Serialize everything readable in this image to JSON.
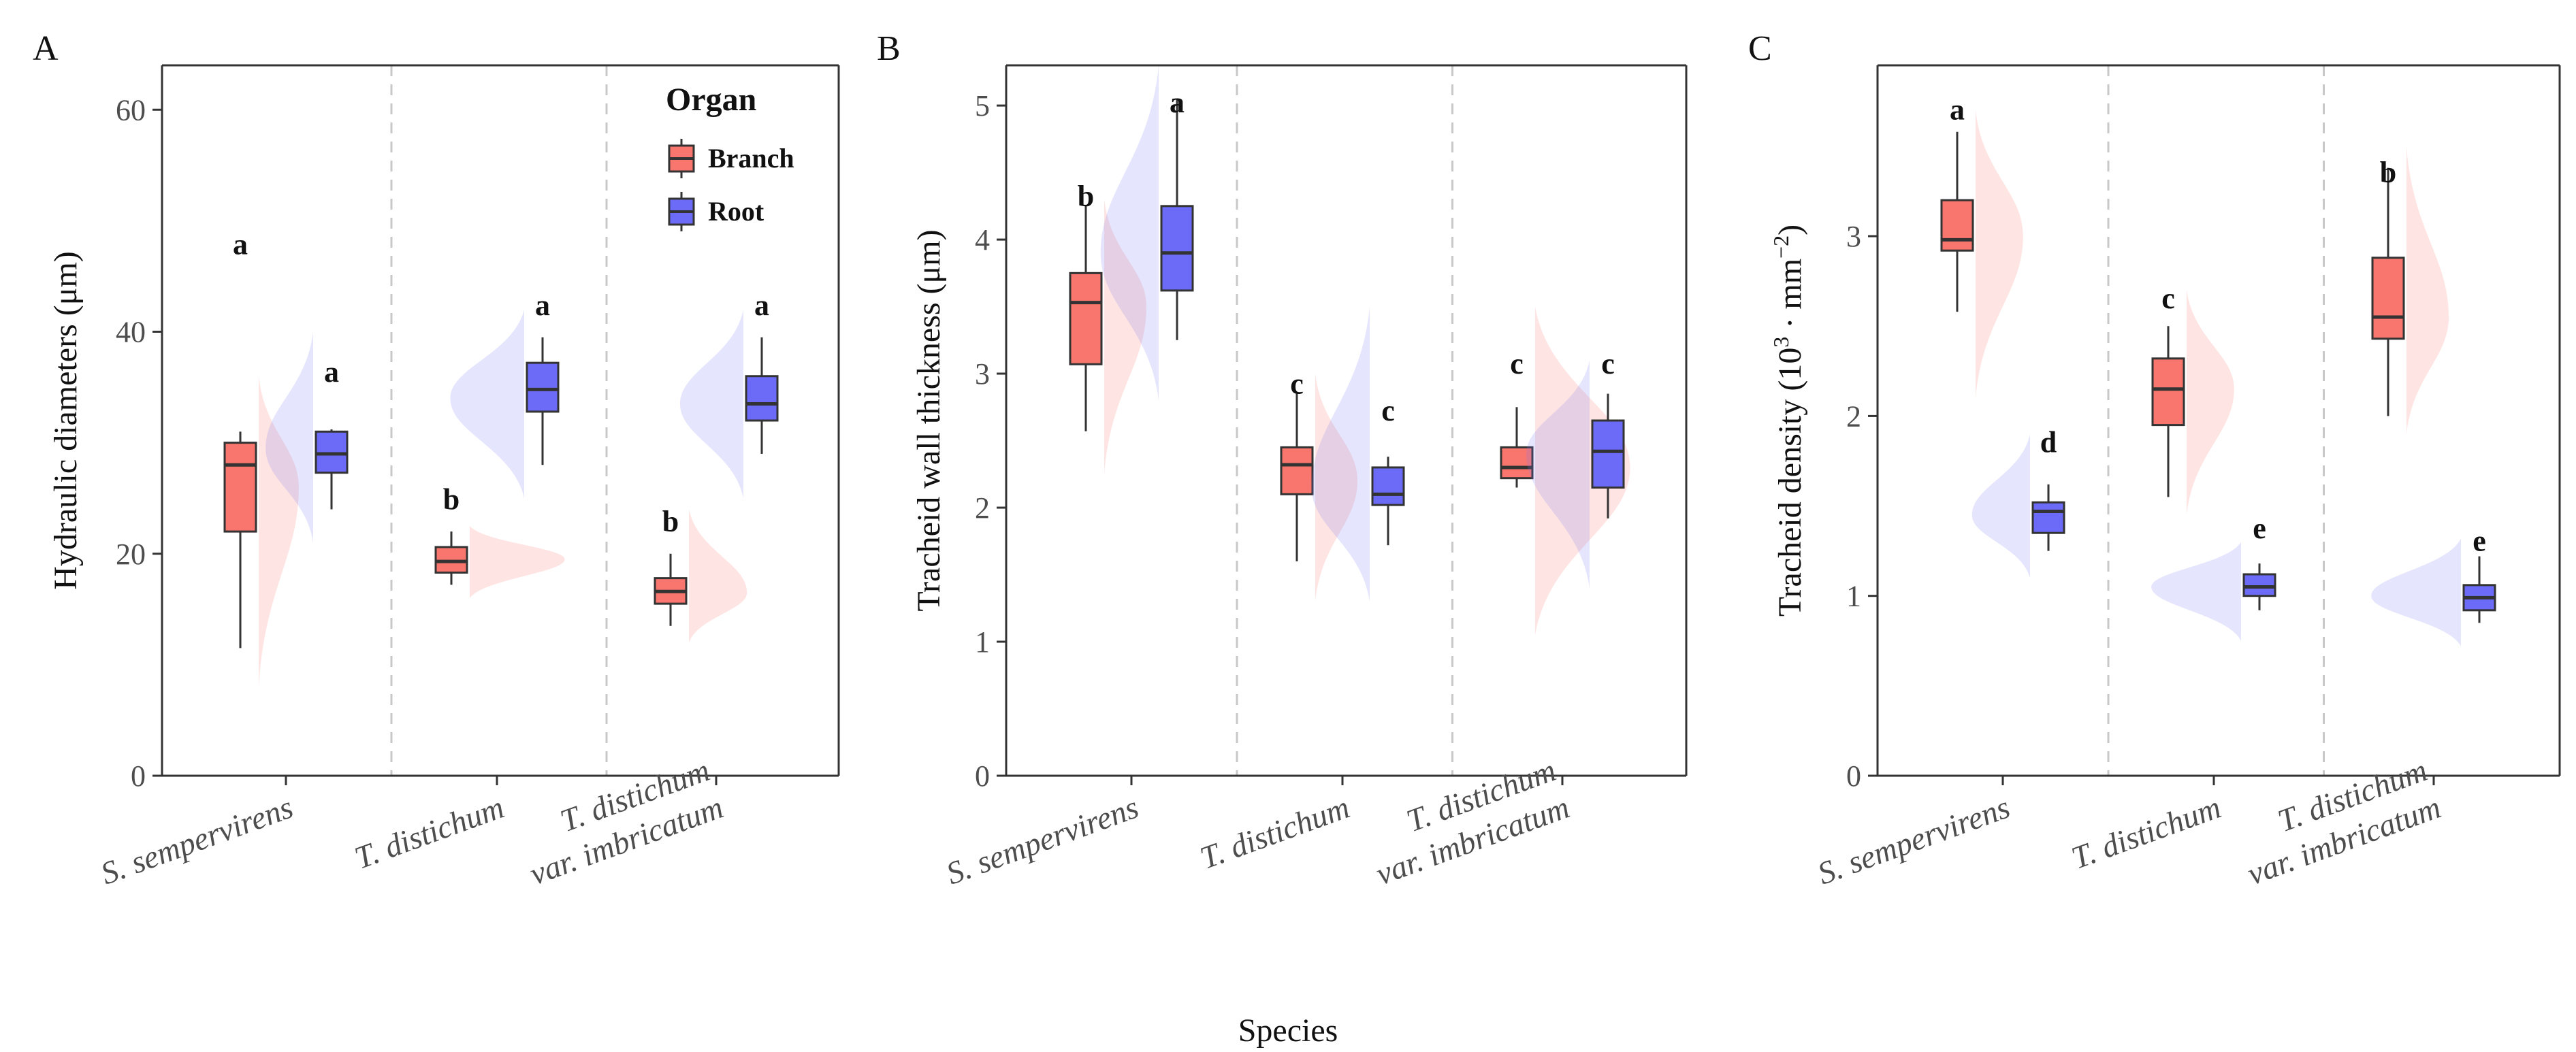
{
  "figure": {
    "xlabel": "Species"
  },
  "legend": {
    "title": "Organ",
    "items": [
      {
        "label": "Branch",
        "color": "#F8766D"
      },
      {
        "label": "Root",
        "color": "#6B6BF7"
      }
    ]
  },
  "colors": {
    "branch_violin": "#F8766D",
    "root_violin": "#7B7BF7",
    "separator": "#C8C8C8",
    "axis": "#333333"
  },
  "chart_data": [
    {
      "type": "box",
      "panel": "A",
      "ylabel": "Hydraulic diameters (μm)",
      "ylim": [
        0,
        64
      ],
      "yticks": [
        0,
        20,
        40,
        60
      ],
      "categories": [
        "S. sempervirens",
        "T. distichum",
        "T. distichum var. imbricatum"
      ],
      "category_lines": [
        [
          "S. sempervirens"
        ],
        [
          "T. distichum"
        ],
        [
          "T. distichum",
          "var. imbricatum"
        ]
      ],
      "series": [
        {
          "name": "Branch",
          "boxes": [
            {
              "min": 11.5,
              "q1": 22,
              "median": 28,
              "q3": 30,
              "max": 31,
              "letter": "a",
              "letter_y": 47
            },
            {
              "min": 17.2,
              "q1": 18.3,
              "median": 19.3,
              "q3": 20.6,
              "max": 22,
              "letter": "b",
              "letter_y": 24
            },
            {
              "min": 13.5,
              "q1": 15.5,
              "median": 16.6,
              "q3": 17.8,
              "max": 20,
              "letter": "b",
              "letter_y": 22
            }
          ],
          "violins": [
            {
              "lo": 8,
              "hi": 36,
              "mode": 26,
              "width": 0.38
            },
            {
              "lo": 16,
              "hi": 22.5,
              "mode": 19.5,
              "width": 0.9
            },
            {
              "lo": 12,
              "hi": 24,
              "mode": 16.5,
              "width": 0.55
            }
          ]
        },
        {
          "name": "Root",
          "boxes": [
            {
              "min": 24,
              "q1": 27.3,
              "median": 29,
              "q3": 31,
              "max": 31.2,
              "letter": "a",
              "letter_y": 35.5
            },
            {
              "min": 28,
              "q1": 32.8,
              "median": 34.8,
              "q3": 37.2,
              "max": 39.5,
              "letter": "a",
              "letter_y": 41.5
            },
            {
              "min": 29,
              "q1": 32,
              "median": 33.5,
              "q3": 36,
              "max": 39.5,
              "letter": "a",
              "letter_y": 41.5
            }
          ],
          "violins": [
            {
              "lo": 21,
              "hi": 40,
              "mode": 29.5,
              "width": 0.45
            },
            {
              "lo": 25,
              "hi": 42,
              "mode": 34,
              "width": 0.7
            },
            {
              "lo": 25,
              "hi": 42,
              "mode": 33.5,
              "width": 0.6
            }
          ]
        }
      ]
    },
    {
      "type": "box",
      "panel": "B",
      "ylabel": "Tracheid wall thickness (μm)",
      "ylim": [
        0,
        5.3
      ],
      "yticks": [
        0,
        1,
        2,
        3,
        4,
        5
      ],
      "categories": [
        "S. sempervirens",
        "T. distichum",
        "T. distichum var. imbricatum"
      ],
      "category_lines": [
        [
          "S. sempervirens"
        ],
        [
          "T. distichum"
        ],
        [
          "T. distichum",
          "var. imbricatum"
        ]
      ],
      "series": [
        {
          "name": "Branch",
          "boxes": [
            {
              "min": 2.57,
              "q1": 3.07,
              "median": 3.53,
              "q3": 3.75,
              "max": 4.25,
              "letter": "b",
              "letter_y": 4.25
            },
            {
              "min": 1.6,
              "q1": 2.1,
              "median": 2.32,
              "q3": 2.45,
              "max": 2.85,
              "letter": "c",
              "letter_y": 2.85
            },
            {
              "min": 2.15,
              "q1": 2.22,
              "median": 2.3,
              "q3": 2.45,
              "max": 2.75,
              "letter": "c",
              "letter_y": 3.0
            }
          ],
          "violins": [
            {
              "lo": 2.25,
              "hi": 4.3,
              "mode": 3.5,
              "width": 0.4
            },
            {
              "lo": 1.3,
              "hi": 3.0,
              "mode": 2.2,
              "width": 0.4
            },
            {
              "lo": 1.05,
              "hi": 3.5,
              "mode": 2.3,
              "width": 0.9
            }
          ]
        },
        {
          "name": "Root",
          "boxes": [
            {
              "min": 3.25,
              "q1": 3.62,
              "median": 3.9,
              "q3": 4.25,
              "max": 5.05,
              "letter": "a",
              "letter_y": 4.95
            },
            {
              "min": 1.72,
              "q1": 2.02,
              "median": 2.1,
              "q3": 2.3,
              "max": 2.38,
              "letter": "c",
              "letter_y": 2.65
            },
            {
              "min": 1.92,
              "q1": 2.15,
              "median": 2.42,
              "q3": 2.65,
              "max": 2.85,
              "letter": "c",
              "letter_y": 3.0
            }
          ],
          "violins": [
            {
              "lo": 2.8,
              "hi": 5.3,
              "mode": 3.9,
              "width": 0.55
            },
            {
              "lo": 1.3,
              "hi": 3.5,
              "mode": 2.15,
              "width": 0.55
            },
            {
              "lo": 1.4,
              "hi": 3.1,
              "mode": 2.4,
              "width": 0.6
            }
          ]
        }
      ]
    },
    {
      "type": "box",
      "panel": "C",
      "ylabel": "Tracheid density (10^3 · mm^-2)",
      "ylabel_parts": [
        "Tracheid  density  (10",
        "3",
        " ·  mm",
        "−2",
        ")"
      ],
      "ylim": [
        0,
        3.95
      ],
      "yticks": [
        0,
        1,
        2,
        3
      ],
      "categories": [
        "S. sempervirens",
        "T. distichum",
        "T. distichum var. imbricatum"
      ],
      "category_lines": [
        [
          "S. sempervirens"
        ],
        [
          "T. distichum"
        ],
        [
          "T. distichum",
          "var. imbricatum"
        ]
      ],
      "series": [
        {
          "name": "Branch",
          "boxes": [
            {
              "min": 2.58,
              "q1": 2.92,
              "median": 2.98,
              "q3": 3.2,
              "max": 3.58,
              "letter": "a",
              "letter_y": 3.65
            },
            {
              "min": 1.55,
              "q1": 1.95,
              "median": 2.15,
              "q3": 2.32,
              "max": 2.5,
              "letter": "c",
              "letter_y": 2.6
            },
            {
              "min": 2.0,
              "q1": 2.43,
              "median": 2.55,
              "q3": 2.88,
              "max": 3.38,
              "letter": "b",
              "letter_y": 3.3
            }
          ],
          "violins": [
            {
              "lo": 2.1,
              "hi": 3.7,
              "mode": 3.0,
              "width": 0.45
            },
            {
              "lo": 1.45,
              "hi": 2.7,
              "mode": 2.15,
              "width": 0.45
            },
            {
              "lo": 1.9,
              "hi": 3.5,
              "mode": 2.55,
              "width": 0.4
            }
          ]
        },
        {
          "name": "Root",
          "boxes": [
            {
              "min": 1.25,
              "q1": 1.35,
              "median": 1.47,
              "q3": 1.52,
              "max": 1.62,
              "letter": "d",
              "letter_y": 1.8
            },
            {
              "min": 0.92,
              "q1": 1.0,
              "median": 1.05,
              "q3": 1.12,
              "max": 1.18,
              "letter": "e",
              "letter_y": 1.32
            },
            {
              "min": 0.85,
              "q1": 0.92,
              "median": 0.99,
              "q3": 1.06,
              "max": 1.22,
              "letter": "e",
              "letter_y": 1.25
            }
          ],
          "violins": [
            {
              "lo": 1.1,
              "hi": 1.9,
              "mode": 1.45,
              "width": 0.55
            },
            {
              "lo": 0.75,
              "hi": 1.3,
              "mode": 1.05,
              "width": 0.85
            },
            {
              "lo": 0.72,
              "hi": 1.32,
              "mode": 1.0,
              "width": 0.85
            }
          ]
        }
      ]
    }
  ]
}
